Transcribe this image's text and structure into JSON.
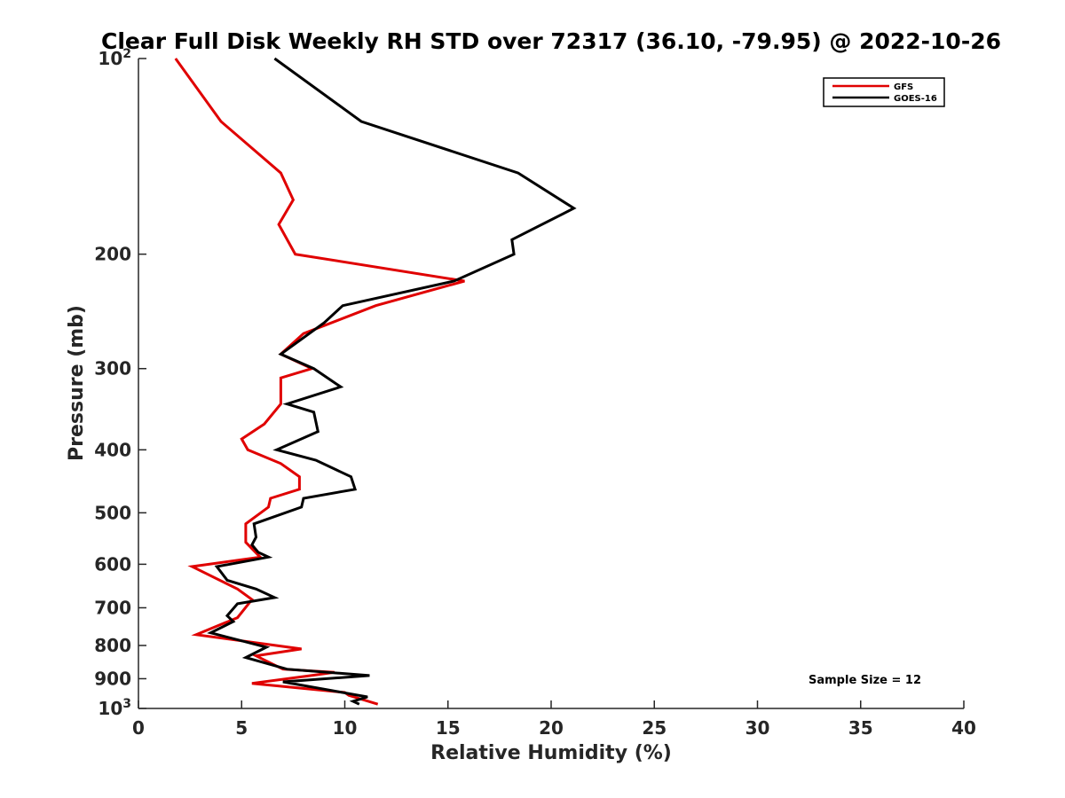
{
  "chart_data": {
    "type": "line",
    "title": "Clear Full Disk Weekly RH STD over 72317 (36.10, -79.95) @ 2022-10-26",
    "xlabel": "Relative Humidity (%)",
    "ylabel": "Pressure (mb)",
    "xlim": [
      0,
      40
    ],
    "ylim": [
      100,
      1000
    ],
    "y_scale": "log",
    "y_reversed": true,
    "grid": false,
    "legend_position": "top-right",
    "x_ticks": [
      "0",
      "5",
      "10",
      "15",
      "20",
      "25",
      "30",
      "35",
      "40"
    ],
    "y_ticks": [
      {
        "value": 100,
        "base": "10",
        "exp": "2"
      },
      {
        "value": 200,
        "label": "200"
      },
      {
        "value": 300,
        "label": "300"
      },
      {
        "value": 400,
        "label": "400"
      },
      {
        "value": 500,
        "label": "500"
      },
      {
        "value": 600,
        "label": "600"
      },
      {
        "value": 700,
        "label": "700"
      },
      {
        "value": 800,
        "label": "800"
      },
      {
        "value": 900,
        "label": "900"
      },
      {
        "value": 1000,
        "base": "10",
        "exp": "3"
      }
    ],
    "series": [
      {
        "name": "GFS",
        "color": "#e00000",
        "points": [
          [
            1.8,
            100
          ],
          [
            4.0,
            125
          ],
          [
            6.9,
            150
          ],
          [
            7.5,
            165
          ],
          [
            6.8,
            180
          ],
          [
            7.6,
            200
          ],
          [
            15.8,
            220
          ],
          [
            11.5,
            240
          ],
          [
            8.0,
            265
          ],
          [
            6.9,
            285
          ],
          [
            8.4,
            300
          ],
          [
            6.9,
            310
          ],
          [
            6.9,
            340
          ],
          [
            6.1,
            365
          ],
          [
            5.0,
            385
          ],
          [
            5.3,
            400
          ],
          [
            6.9,
            420
          ],
          [
            7.8,
            440
          ],
          [
            7.8,
            460
          ],
          [
            6.4,
            475
          ],
          [
            6.3,
            490
          ],
          [
            5.2,
            520
          ],
          [
            5.2,
            555
          ],
          [
            5.9,
            585
          ],
          [
            2.6,
            605
          ],
          [
            4.8,
            655
          ],
          [
            5.5,
            680
          ],
          [
            4.8,
            725
          ],
          [
            2.8,
            770
          ],
          [
            7.9,
            810
          ],
          [
            5.7,
            830
          ],
          [
            7.0,
            870
          ],
          [
            9.5,
            880
          ],
          [
            7.2,
            900
          ],
          [
            5.5,
            915
          ],
          [
            10.0,
            945
          ],
          [
            10.2,
            955
          ],
          [
            11.6,
            985
          ]
        ]
      },
      {
        "name": "GOES-16",
        "color": "#000000",
        "points": [
          [
            6.6,
            100
          ],
          [
            10.8,
            125
          ],
          [
            18.4,
            150
          ],
          [
            21.1,
            170
          ],
          [
            18.1,
            190
          ],
          [
            18.2,
            200
          ],
          [
            15.3,
            220
          ],
          [
            9.9,
            240
          ],
          [
            9.0,
            255
          ],
          [
            6.9,
            285
          ],
          [
            8.5,
            300
          ],
          [
            9.8,
            320
          ],
          [
            7.2,
            340
          ],
          [
            8.5,
            350
          ],
          [
            8.7,
            375
          ],
          [
            6.7,
            400
          ],
          [
            8.6,
            415
          ],
          [
            10.3,
            440
          ],
          [
            10.5,
            460
          ],
          [
            8.0,
            475
          ],
          [
            7.9,
            490
          ],
          [
            5.6,
            520
          ],
          [
            5.7,
            545
          ],
          [
            5.5,
            560
          ],
          [
            5.8,
            575
          ],
          [
            6.3,
            585
          ],
          [
            3.8,
            605
          ],
          [
            4.3,
            635
          ],
          [
            5.7,
            655
          ],
          [
            6.6,
            675
          ],
          [
            4.8,
            690
          ],
          [
            4.3,
            720
          ],
          [
            4.6,
            735
          ],
          [
            3.5,
            765
          ],
          [
            6.2,
            805
          ],
          [
            5.2,
            835
          ],
          [
            7.2,
            870
          ],
          [
            11.2,
            890
          ],
          [
            7.0,
            910
          ],
          [
            11.1,
            960
          ],
          [
            10.4,
            975
          ],
          [
            10.7,
            985
          ]
        ]
      }
    ],
    "annotation": "Sample Size = 12"
  }
}
